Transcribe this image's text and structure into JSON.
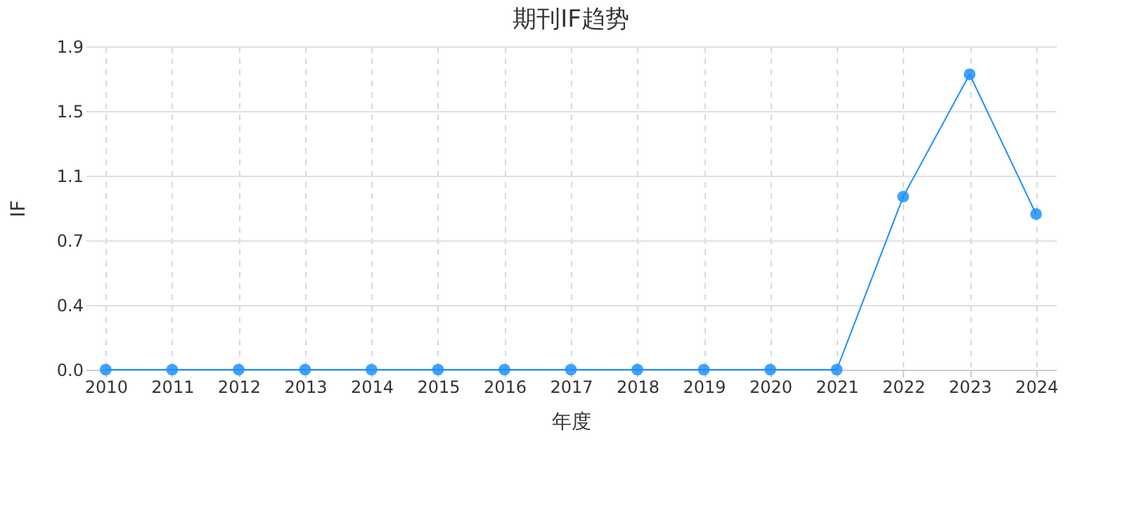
{
  "chart_data": {
    "type": "line",
    "title": "期刊IF趋势",
    "xlabel": "年度",
    "ylabel": "IF",
    "categories": [
      "2010",
      "2011",
      "2012",
      "2013",
      "2014",
      "2015",
      "2016",
      "2017",
      "2018",
      "2019",
      "2020",
      "2021",
      "2022",
      "2023",
      "2024"
    ],
    "series": [
      {
        "color": "#1e90ff",
        "values": [
          0,
          0,
          0,
          0,
          0,
          0,
          0,
          0,
          0,
          0,
          0,
          0,
          0.99,
          1.69,
          0.89
        ]
      }
    ],
    "ylim": [
      0,
      1.85
    ],
    "yticks": [
      {
        "value": 0,
        "label": "0.0"
      },
      {
        "value": 0.37,
        "label": "0.4"
      },
      {
        "value": 0.74,
        "label": "0.7"
      },
      {
        "value": 1.11,
        "label": "1.1"
      },
      {
        "value": 1.48,
        "label": "1.5"
      },
      {
        "value": 1.85,
        "label": "1.9"
      }
    ],
    "grid": true,
    "marker": "circle",
    "line_style": "solid",
    "legend": false
  }
}
